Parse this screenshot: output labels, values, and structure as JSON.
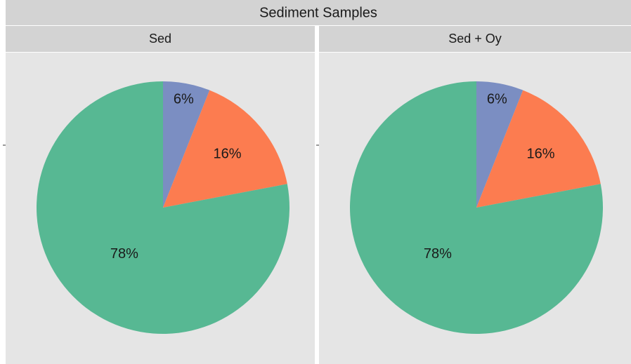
{
  "title": "Sediment Samples",
  "chart_data": [
    {
      "type": "pie",
      "title": "Sed",
      "values": [
        6,
        16,
        78
      ],
      "value_labels": [
        "6%",
        "16%",
        "78%"
      ],
      "colors": [
        "#7b8ec2",
        "#fc7c50",
        "#57b893"
      ]
    },
    {
      "type": "pie",
      "title": "Sed + Oy",
      "values": [
        6,
        16,
        78
      ],
      "value_labels": [
        "6%",
        "16%",
        "78%"
      ],
      "colors": [
        "#7b8ec2",
        "#fc7c50",
        "#57b893"
      ]
    }
  ]
}
